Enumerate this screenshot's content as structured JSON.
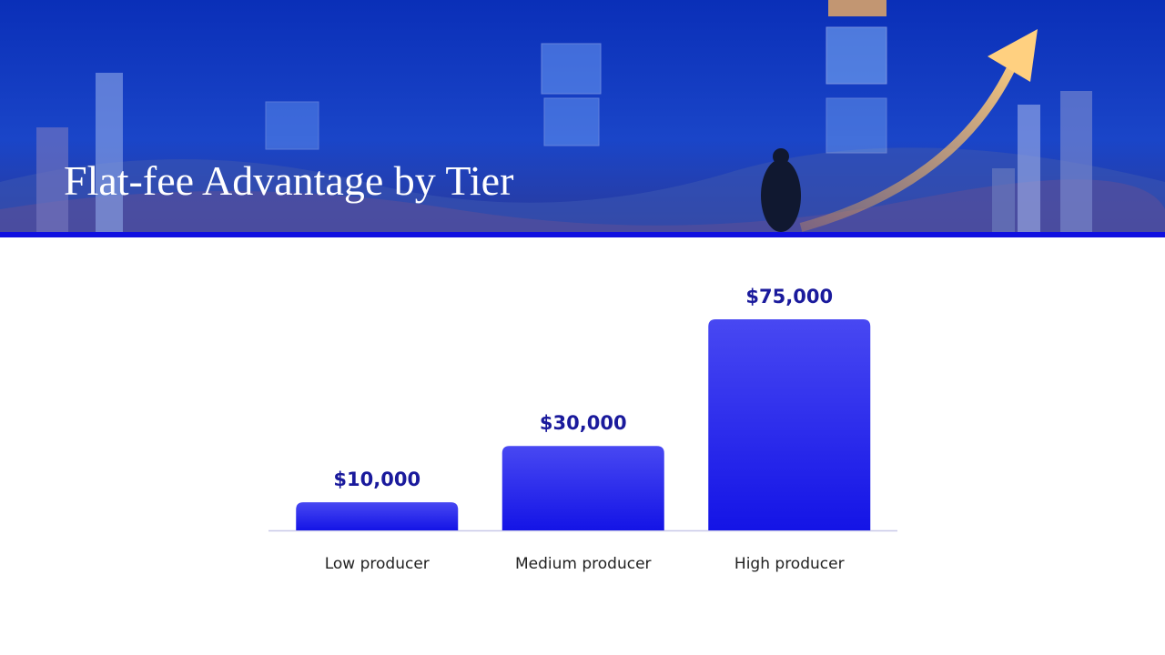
{
  "chart_data": {
    "type": "bar",
    "title": "Flat-fee Advantage by Tier",
    "categories": [
      "Low producer",
      "Medium producer",
      "High producer"
    ],
    "values": [
      10000,
      30000,
      75000
    ],
    "value_labels": [
      "$10,000",
      "$30,000",
      "$75,000"
    ],
    "color": "#2222ee"
  }
}
